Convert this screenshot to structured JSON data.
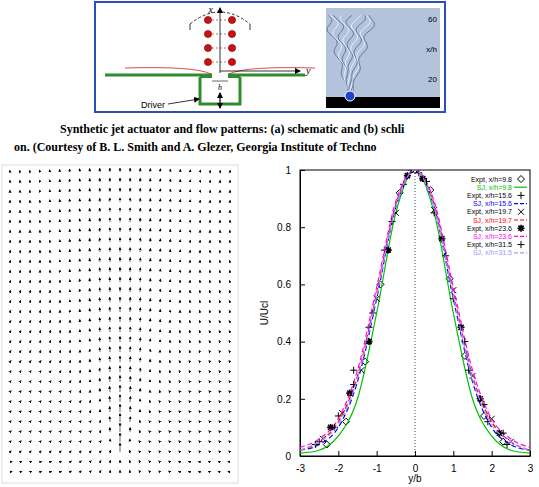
{
  "figure": {
    "schematic": {
      "x_label": "x",
      "y_label": "y",
      "h_label": "h",
      "driver_label": "Driver"
    },
    "schlieren": {
      "axis_label": "x/h",
      "ticks": [
        60,
        20
      ]
    },
    "caption": [
      "Synthetic jet actuator and flow patterns: (a) schematic and (b) schli",
      "on. (Courtesy of B. L. Smith and A. Glezer, Georgia Institute of Techno"
    ]
  },
  "chart_data": {
    "type": "scatter",
    "x_label": "y/b",
    "y_label": "U/Ucl",
    "xlim": [
      -3,
      3
    ],
    "xticks": [
      -3,
      -2,
      -1,
      0,
      1,
      2,
      3
    ],
    "ylim": [
      0,
      1
    ],
    "yticks": [
      0,
      0.2,
      0.4,
      0.6,
      0.8,
      1
    ],
    "grid": false,
    "legend": "upper right",
    "series": [
      {
        "name": "Expt, x/h=9.8",
        "type": "scatter",
        "marker": "diamond",
        "color": "#000000",
        "x": [
          -2.3,
          -1.8,
          -1.3,
          -0.9,
          -0.4,
          0,
          0.4,
          0.9,
          1.3,
          1.8,
          2.3
        ],
        "values": [
          0.04,
          0.12,
          0.33,
          0.6,
          0.92,
          1,
          0.93,
          0.62,
          0.35,
          0.14,
          0.05
        ]
      },
      {
        "name": "SJ, x/h=9.8",
        "type": "line",
        "line_style": "solid",
        "color": "#00c000",
        "x": [
          -3,
          -2.5,
          -2,
          -1.5,
          -1,
          -0.5,
          0,
          0.5,
          1,
          1.5,
          2,
          2.5,
          3
        ],
        "values": [
          0.01,
          0.02,
          0.07,
          0.2,
          0.5,
          0.85,
          1,
          0.85,
          0.5,
          0.2,
          0.07,
          0.02,
          0.01
        ]
      },
      {
        "name": "Expt, x/h=15.6",
        "type": "scatter",
        "marker": "plus",
        "color": "#000000",
        "x": [
          -2.5,
          -2,
          -1.6,
          -1.2,
          -0.8,
          -0.3,
          0.1,
          0.5,
          1,
          1.4,
          1.9,
          2.4
        ],
        "values": [
          0.05,
          0.14,
          0.3,
          0.45,
          0.72,
          0.95,
          0.99,
          0.85,
          0.55,
          0.3,
          0.12,
          0.04
        ]
      },
      {
        "name": "SJ, x/h=15.6",
        "type": "line",
        "line_style": "dashed",
        "color": "#0000ff",
        "x": [
          -3,
          -2.5,
          -2,
          -1.5,
          -1,
          -0.5,
          0,
          0.5,
          1,
          1.5,
          2,
          2.5,
          3
        ],
        "values": [
          0.02,
          0.04,
          0.1,
          0.26,
          0.55,
          0.87,
          1,
          0.87,
          0.55,
          0.26,
          0.1,
          0.04,
          0.02
        ]
      },
      {
        "name": "Expt, x/h=19.7",
        "type": "scatter",
        "marker": "cross",
        "color": "#000000",
        "x": [
          -2.4,
          -1.9,
          -1.4,
          -1,
          -0.5,
          0,
          0.5,
          1,
          1.5,
          2,
          2.5
        ],
        "values": [
          0.06,
          0.15,
          0.3,
          0.55,
          0.85,
          1,
          0.86,
          0.58,
          0.28,
          0.13,
          0.05
        ]
      },
      {
        "name": "SJ, x/h=19.7",
        "type": "line",
        "line_style": "dashed",
        "color": "#ff0000",
        "x": [
          -3,
          -2.5,
          -2,
          -1.5,
          -1,
          -0.5,
          0,
          0.5,
          1,
          1.5,
          2,
          2.5,
          3
        ],
        "values": [
          0.02,
          0.05,
          0.12,
          0.28,
          0.57,
          0.88,
          1,
          0.88,
          0.57,
          0.28,
          0.12,
          0.05,
          0.02
        ]
      },
      {
        "name": "Expt, x/h=23.6",
        "type": "scatter",
        "marker": "star",
        "color": "#000000",
        "x": [
          -2.2,
          -1.7,
          -1.2,
          -0.7,
          -0.2,
          0.2,
          0.7,
          1.2,
          1.7,
          2.2
        ],
        "values": [
          0.1,
          0.22,
          0.4,
          0.72,
          0.98,
          0.97,
          0.76,
          0.45,
          0.2,
          0.08
        ]
      },
      {
        "name": "SJ, x/h=23.6",
        "type": "line",
        "line_style": "dashed",
        "color": "#ff00ff",
        "x": [
          -3,
          -2.5,
          -2,
          -1.5,
          -1,
          -0.5,
          0,
          0.5,
          1,
          1.5,
          2,
          2.5,
          3
        ],
        "values": [
          0.03,
          0.06,
          0.13,
          0.3,
          0.59,
          0.89,
          1,
          0.89,
          0.59,
          0.3,
          0.13,
          0.06,
          0.03
        ]
      },
      {
        "name": "Expt, x/h=31.5",
        "type": "scatter",
        "marker": "plus",
        "color": "#000000",
        "x": [
          -2.6,
          -2.1,
          -1.6,
          -1.1,
          -0.6,
          -0.1,
          0.3,
          0.8,
          1.3,
          1.8,
          2.3
        ],
        "values": [
          0.04,
          0.1,
          0.25,
          0.5,
          0.82,
          1,
          0.96,
          0.7,
          0.4,
          0.18,
          0.08
        ]
      },
      {
        "name": "SJ, x/h=31.5",
        "type": "line",
        "line_style": "dashed",
        "color": "#9999ff",
        "x": [
          -3,
          -2.5,
          -2,
          -1.5,
          -1,
          -0.5,
          0,
          0.5,
          1,
          1.5,
          2,
          2.5,
          3
        ],
        "values": [
          0.02,
          0.05,
          0.11,
          0.27,
          0.56,
          0.87,
          1,
          0.87,
          0.56,
          0.27,
          0.11,
          0.05,
          0.02
        ]
      }
    ]
  }
}
